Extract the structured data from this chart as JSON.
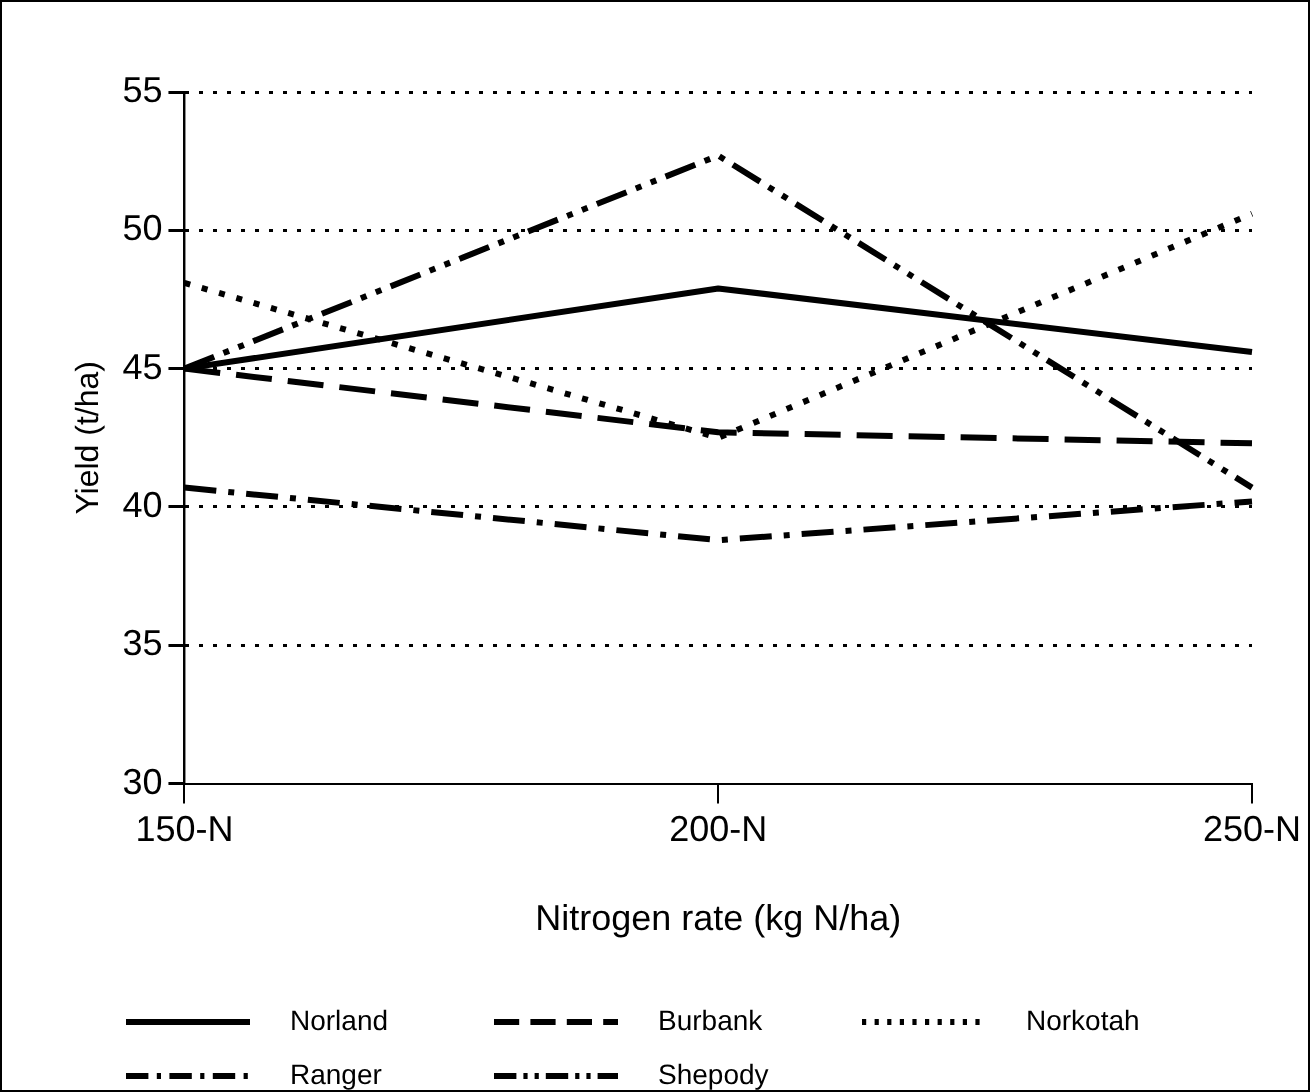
{
  "chart_data": {
    "type": "line",
    "xlabel": "Nitrogen rate (kg N/ha)",
    "ylabel": "Yield (t/ha)",
    "categories": [
      "150-N",
      "200-N",
      "250-N"
    ],
    "series": [
      {
        "name": "Norland",
        "color": "#000000",
        "line_style": "solid",
        "values": [
          45,
          47.9,
          45.6
        ]
      },
      {
        "name": "Burbank",
        "color": "#000000",
        "line_style": "dashed",
        "values": [
          45,
          42.7,
          42.3
        ]
      },
      {
        "name": "Norkotah",
        "color": "#000000",
        "line_style": "dotted",
        "values": [
          48.1,
          42.5,
          50.6
        ]
      },
      {
        "name": "Ranger",
        "color": "#000000",
        "line_style": "dashdot",
        "values": [
          40.7,
          38.8,
          40.2
        ]
      },
      {
        "name": "Shepody",
        "color": "#000000",
        "line_style": "dashdotdot",
        "values": [
          45,
          52.7,
          40.7
        ]
      }
    ],
    "ylim": [
      30,
      55
    ],
    "yticks": [
      30,
      35,
      40,
      45,
      50,
      55
    ],
    "grid": "y",
    "legend": "bottom",
    "marker": "none"
  }
}
